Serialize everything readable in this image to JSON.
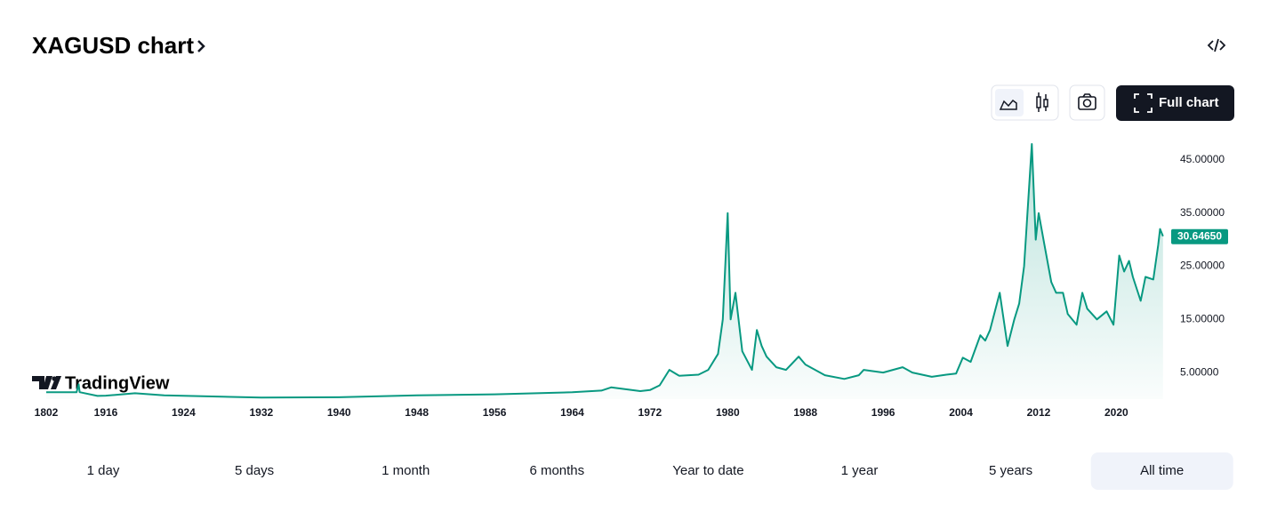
{
  "header": {
    "title": "XAGUSD chart",
    "full_chart": "Full chart"
  },
  "logo": "TradingView",
  "ranges": [
    "1 day",
    "5 days",
    "1 month",
    "6 months",
    "Year to date",
    "1 year",
    "5 years",
    "All time"
  ],
  "selected_range": "All time",
  "chart_data": {
    "type": "line",
    "color": "#089981",
    "x": [
      1802,
      1860,
      1864,
      1866,
      1900,
      1916,
      1919,
      1922,
      1932,
      1940,
      1948,
      1956,
      1964,
      1967,
      1968,
      1971,
      1972,
      1973,
      1974,
      1975,
      1976,
      1977,
      1978,
      1979,
      1979.5,
      1980,
      1980.3,
      1980.8,
      1981.5,
      1982.5,
      1983,
      1983.5,
      1984,
      1985,
      1986,
      1987.3,
      1988,
      1990,
      1992,
      1993.5,
      1994,
      1996,
      1998,
      1999,
      2001,
      2002.5,
      2003.5,
      2004.2,
      2005,
      2006,
      2006.5,
      2007,
      2008,
      2008.8,
      2009.5,
      2010,
      2010.5,
      2011.3,
      2011.7,
      2012,
      2012.6,
      2013.3,
      2013.8,
      2014.5,
      2015,
      2015.9,
      2016.5,
      2017,
      2018,
      2019,
      2019.7,
      2020.3,
      2020.8,
      2021.3,
      2021.7,
      2022.5,
      2023,
      2023.8,
      2024.3,
      2024.5,
      2024.8
    ],
    "series": [
      {
        "name": "XAGUSD",
        "values": [
          1.3,
          1.3,
          2.8,
          1.3,
          0.6,
          0.65,
          1.1,
          0.7,
          0.28,
          0.35,
          0.7,
          0.9,
          1.29,
          1.6,
          2.2,
          1.5,
          1.7,
          2.6,
          5.5,
          4.4,
          4.5,
          4.6,
          5.5,
          8.5,
          15,
          35,
          15,
          20,
          9,
          5.5,
          13,
          10,
          8,
          6,
          5.5,
          8,
          6.5,
          4.5,
          3.8,
          4.5,
          5.5,
          5,
          6,
          5,
          4.2,
          4.6,
          4.8,
          7.8,
          7,
          12,
          11,
          13,
          20,
          10,
          15,
          18,
          25,
          48,
          30,
          35,
          29,
          22,
          20,
          20,
          16,
          14,
          20,
          17,
          15,
          16.5,
          14,
          27,
          24,
          26,
          23,
          18.5,
          23,
          22.5,
          29,
          32,
          30.6465
        ]
      }
    ],
    "last_price": {
      "value": 30.6465,
      "label": "30.64650"
    },
    "xlim": [
      1802,
      2025
    ],
    "xticks": [
      1802,
      1916,
      1924,
      1932,
      1940,
      1948,
      1956,
      1964,
      1972,
      1980,
      1988,
      1996,
      2004,
      2012,
      2020
    ],
    "ylim": [
      0,
      50
    ],
    "yticks": [
      {
        "value": 5,
        "label": "5.00000"
      },
      {
        "value": 15,
        "label": "15.00000"
      },
      {
        "value": 25,
        "label": "25.00000"
      },
      {
        "value": 35,
        "label": "35.00000"
      },
      {
        "value": 45,
        "label": "45.00000"
      }
    ]
  }
}
